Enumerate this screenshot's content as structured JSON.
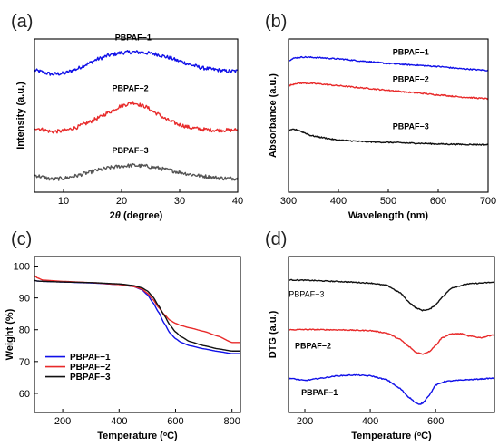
{
  "chart_data": [
    {
      "id": "a",
      "type": "line",
      "panel_label": "(a)",
      "xlabel": "2θ (degree)",
      "xlabel_parts": [
        "2",
        "θ",
        " (degree)"
      ],
      "ylabel": "Intensity (a.u.)",
      "xlim": [
        5,
        40
      ],
      "ylim": [
        0,
        10
      ],
      "xticks": [
        10,
        20,
        30,
        40
      ],
      "yticks": [],
      "noise": 0.12,
      "series": [
        {
          "name": "PBPAF−1",
          "color": "#1010e8",
          "x": [
            5,
            8,
            10,
            12,
            14,
            16,
            18,
            20,
            22,
            24,
            26,
            28,
            30,
            32,
            34,
            36,
            38,
            40
          ],
          "y": [
            7.95,
            7.7,
            7.75,
            8.0,
            8.35,
            8.7,
            8.95,
            9.1,
            9.15,
            9.1,
            9.0,
            8.8,
            8.55,
            8.3,
            8.1,
            8.0,
            7.9,
            7.9
          ]
        },
        {
          "name": "PBPAF−2",
          "color": "#e82a2a",
          "x": [
            5,
            8,
            10,
            12,
            14,
            16,
            18,
            20,
            22,
            24,
            26,
            28,
            30,
            32,
            34,
            36,
            38,
            40
          ],
          "y": [
            4.2,
            3.95,
            4.0,
            4.2,
            4.5,
            4.85,
            5.25,
            5.65,
            5.85,
            5.6,
            5.15,
            4.7,
            4.4,
            4.2,
            4.1,
            4.05,
            4.05,
            4.05
          ]
        },
        {
          "name": "PBPAF−3",
          "color": "#555555",
          "x": [
            5,
            8,
            10,
            12,
            14,
            16,
            18,
            20,
            22,
            24,
            26,
            28,
            30,
            32,
            34,
            36,
            38,
            40
          ],
          "y": [
            1.1,
            0.85,
            0.9,
            1.05,
            1.25,
            1.45,
            1.6,
            1.7,
            1.75,
            1.7,
            1.6,
            1.45,
            1.3,
            1.15,
            1.05,
            0.95,
            0.9,
            0.9
          ]
        }
      ],
      "annotations": [
        {
          "text": "PBPAF−1",
          "x": 22,
          "y": 9.9,
          "style": "bold"
        },
        {
          "text": "PBPAF−2",
          "x": 21.5,
          "y": 6.6,
          "style": "bold"
        },
        {
          "text": "PBPAF−3",
          "x": 21.5,
          "y": 2.55,
          "style": "bold"
        }
      ],
      "legend": null,
      "grid": false
    },
    {
      "id": "b",
      "type": "line",
      "panel_label": "(b)",
      "xlabel": "Wavelength (nm)",
      "ylabel": "Absorbance (a.u.)",
      "xlim": [
        300,
        700
      ],
      "ylim": [
        0,
        10
      ],
      "xticks": [
        300,
        400,
        500,
        600,
        700
      ],
      "yticks": [],
      "noise": 0.04,
      "series": [
        {
          "name": "PBPAF−1",
          "color": "#1010e8",
          "x": [
            300,
            315,
            330,
            345,
            360,
            400,
            450,
            500,
            550,
            600,
            650,
            700
          ],
          "y": [
            8.6,
            8.78,
            8.82,
            8.8,
            8.78,
            8.7,
            8.55,
            8.4,
            8.3,
            8.2,
            8.05,
            7.95
          ]
        },
        {
          "name": "PBPAF−2",
          "color": "#e82a2a",
          "x": [
            300,
            315,
            330,
            345,
            360,
            400,
            450,
            500,
            550,
            600,
            650,
            700
          ],
          "y": [
            6.95,
            7.1,
            7.12,
            7.1,
            7.07,
            6.95,
            6.8,
            6.65,
            6.5,
            6.35,
            6.2,
            6.1
          ]
        },
        {
          "name": "PBPAF−3",
          "color": "#111111",
          "x": [
            300,
            310,
            320,
            330,
            345,
            360,
            400,
            450,
            500,
            550,
            600,
            650,
            700
          ],
          "y": [
            4.0,
            4.1,
            4.05,
            3.9,
            3.7,
            3.6,
            3.4,
            3.3,
            3.25,
            3.2,
            3.15,
            3.12,
            3.1
          ]
        }
      ],
      "annotations": [
        {
          "text": "PBPAF−1",
          "x": 545,
          "y": 8.95,
          "style": "bold"
        },
        {
          "text": "PBPAF−2",
          "x": 545,
          "y": 7.2,
          "style": "bold"
        },
        {
          "text": "PBPAF−3",
          "x": 545,
          "y": 4.1,
          "style": "bold"
        }
      ],
      "legend": null,
      "grid": false
    },
    {
      "id": "c",
      "type": "line",
      "panel_label": "(c)",
      "xlabel": "Temperature (ºC)",
      "xlabel_parts": [
        "Temperature (",
        "o",
        "C)"
      ],
      "ylabel": "Weight (%)",
      "xlim": [
        100,
        830
      ],
      "ylim": [
        54,
        103
      ],
      "xticks": [
        200,
        400,
        600,
        800
      ],
      "yticks": [
        60,
        70,
        80,
        90,
        100
      ],
      "noise": 0,
      "series": [
        {
          "name": "PBPAF−1",
          "color": "#1010e8",
          "x": [
            100,
            110,
            130,
            200,
            300,
            400,
            450,
            480,
            500,
            520,
            540,
            560,
            580,
            600,
            620,
            650,
            700,
            750,
            800
          ],
          "y": [
            95.5,
            95.3,
            95.2,
            95.0,
            94.7,
            94.2,
            93.6,
            92.6,
            91.0,
            88.5,
            85.5,
            82.0,
            79.0,
            77.2,
            76.0,
            75.0,
            74.0,
            73.2,
            72.5
          ]
        },
        {
          "name": "PBPAF−2",
          "color": "#e82a2a",
          "x": [
            100,
            110,
            130,
            200,
            300,
            400,
            450,
            480,
            500,
            520,
            540,
            560,
            580,
            600,
            620,
            650,
            700,
            750,
            800
          ],
          "y": [
            97.0,
            96.3,
            95.6,
            95.2,
            94.8,
            94.2,
            93.6,
            92.8,
            91.5,
            89.5,
            87.0,
            84.8,
            83.0,
            82.0,
            81.3,
            80.6,
            79.5,
            78.0,
            76.0
          ]
        },
        {
          "name": "PBPAF−3",
          "color": "#111111",
          "x": [
            100,
            110,
            130,
            200,
            300,
            400,
            450,
            480,
            500,
            520,
            540,
            560,
            580,
            600,
            620,
            650,
            700,
            750,
            800
          ],
          "y": [
            95.5,
            95.3,
            95.2,
            95.0,
            94.8,
            94.4,
            93.9,
            93.2,
            92.2,
            90.3,
            87.5,
            84.5,
            81.5,
            79.3,
            77.8,
            76.3,
            75.0,
            74.0,
            73.3
          ]
        }
      ],
      "annotations": [],
      "legend": {
        "position": "lower-left",
        "entries": [
          "PBPAF−1",
          "PBPAF−2",
          "PBPAF−3"
        ]
      },
      "grid": false
    },
    {
      "id": "d",
      "type": "line",
      "panel_label": "(d)",
      "xlabel": "Temperature (ºC)",
      "xlabel_parts": [
        "Temperature (",
        "o",
        "C)"
      ],
      "ylabel": "DTG (a.u.)",
      "xlim": [
        150,
        780
      ],
      "ylim": [
        0,
        10
      ],
      "xticks": [
        200,
        400,
        600
      ],
      "yticks": [],
      "noise": 0.03,
      "series": [
        {
          "name": "PBPAF−3",
          "color": "#111111",
          "x": [
            150,
            200,
            300,
            400,
            450,
            490,
            520,
            540,
            560,
            580,
            600,
            620,
            650,
            700,
            780
          ],
          "y": [
            8.5,
            8.48,
            8.4,
            8.3,
            8.15,
            7.7,
            7.05,
            6.7,
            6.55,
            6.6,
            6.9,
            7.4,
            8.0,
            8.25,
            8.35
          ]
        },
        {
          "name": "PBPAF−2",
          "color": "#e82a2a",
          "x": [
            150,
            200,
            300,
            400,
            450,
            490,
            520,
            540,
            560,
            580,
            600,
            620,
            650,
            680,
            700,
            740,
            780
          ],
          "y": [
            5.3,
            5.32,
            5.3,
            5.25,
            5.1,
            4.7,
            4.2,
            3.85,
            3.75,
            3.9,
            4.3,
            4.8,
            5.05,
            5.05,
            4.9,
            4.8,
            5.0
          ]
        },
        {
          "name": "PBPAF−1",
          "color": "#1010e8",
          "x": [
            150,
            200,
            250,
            300,
            350,
            400,
            450,
            490,
            520,
            540,
            550,
            560,
            580,
            600,
            630,
            700,
            780
          ],
          "y": [
            2.2,
            2.05,
            2.2,
            2.35,
            2.4,
            2.35,
            2.1,
            1.55,
            0.95,
            0.6,
            0.5,
            0.6,
            1.1,
            1.75,
            2.0,
            2.1,
            2.2
          ]
        }
      ],
      "annotations": [
        {
          "text": "PBPAF−3",
          "x": 205,
          "y": 7.4,
          "style": "normal"
        },
        {
          "text": "PBPAF−2",
          "x": 225,
          "y": 4.1,
          "style": "bold"
        },
        {
          "text": "PBPAF−1",
          "x": 245,
          "y": 1.1,
          "style": "bold"
        }
      ],
      "legend": null,
      "grid": false
    }
  ]
}
